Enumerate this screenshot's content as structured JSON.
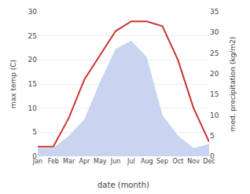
{
  "chart_data": {
    "type": "line",
    "xlabel": "date (month)",
    "ylabel": "max temp (C)",
    "y2label": "med. precipitation (kg/m2)",
    "categories": [
      "Jan",
      "Feb",
      "Mar",
      "Apr",
      "May",
      "Jun",
      "Jul",
      "Aug",
      "Sep",
      "Oct",
      "Nov",
      "Dec"
    ],
    "series": [
      {
        "type": "area",
        "axis": "y2",
        "color": "#c8d4f0",
        "values": [
          2,
          2,
          5,
          9,
          18,
          26,
          28,
          24,
          10,
          5,
          2,
          3
        ]
      },
      {
        "type": "line",
        "color": "#cc3333",
        "values": [
          2,
          2,
          8,
          16,
          21,
          26,
          28,
          28,
          27,
          20,
          10,
          3
        ]
      }
    ],
    "ylim": [
      0,
      30
    ],
    "yticks": [
      0,
      5,
      10,
      15,
      20,
      25,
      30
    ],
    "y2lim": [
      0,
      35
    ],
    "y2ticks": [
      0,
      5,
      10,
      15,
      20,
      25,
      30,
      35
    ],
    "grid": true
  }
}
